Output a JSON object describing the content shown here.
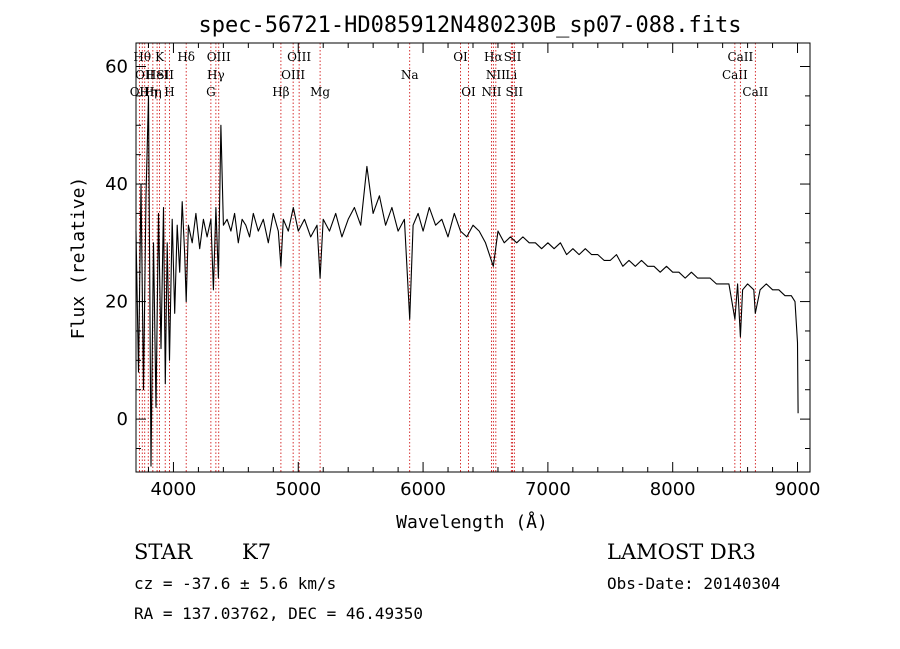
{
  "chart_data": {
    "type": "line",
    "title": "spec-56721-HD085912N480230B_sp07-088.fits",
    "xlabel": "Wavelength (Å)",
    "ylabel": "Flux (relative)",
    "xlim": [
      3700,
      9100
    ],
    "ylim": [
      -9,
      64
    ],
    "xticks": [
      4000,
      5000,
      6000,
      7000,
      8000,
      9000
    ],
    "yticks": [
      0,
      20,
      40,
      60
    ],
    "series": [
      {
        "name": "flux",
        "x": [
          3700,
          3720,
          3740,
          3760,
          3780,
          3800,
          3820,
          3840,
          3860,
          3880,
          3900,
          3920,
          3935,
          3950,
          3968,
          3990,
          4010,
          4030,
          4050,
          4070,
          4090,
          4102,
          4120,
          4150,
          4180,
          4210,
          4240,
          4270,
          4300,
          4320,
          4340,
          4360,
          4380,
          4400,
          4430,
          4460,
          4490,
          4520,
          4550,
          4580,
          4610,
          4640,
          4680,
          4720,
          4760,
          4800,
          4840,
          4861,
          4880,
          4920,
          4960,
          5000,
          5050,
          5100,
          5150,
          5175,
          5200,
          5250,
          5300,
          5350,
          5400,
          5450,
          5500,
          5550,
          5600,
          5650,
          5700,
          5750,
          5800,
          5850,
          5893,
          5920,
          5960,
          6000,
          6050,
          6100,
          6150,
          6200,
          6250,
          6300,
          6350,
          6400,
          6450,
          6500,
          6563,
          6600,
          6650,
          6700,
          6750,
          6800,
          6850,
          6900,
          6950,
          7000,
          7050,
          7100,
          7150,
          7200,
          7250,
          7300,
          7350,
          7400,
          7450,
          7500,
          7550,
          7600,
          7650,
          7700,
          7750,
          7800,
          7850,
          7900,
          7950,
          8000,
          8050,
          8100,
          8150,
          8200,
          8250,
          8300,
          8350,
          8400,
          8450,
          8498,
          8520,
          8542,
          8560,
          8600,
          8650,
          8662,
          8700,
          8750,
          8800,
          8850,
          8900,
          8950,
          8980,
          9000,
          9005
        ],
        "y": [
          32,
          8,
          40,
          5,
          38,
          55,
          -8,
          30,
          2,
          35,
          12,
          36,
          6,
          30,
          10,
          34,
          18,
          33,
          25,
          37,
          28,
          20,
          33,
          30,
          35,
          29,
          34,
          31,
          34,
          22,
          36,
          24,
          50,
          33,
          34,
          32,
          35,
          30,
          34,
          33,
          31,
          35,
          32,
          34,
          30,
          35,
          32,
          26,
          34,
          32,
          36,
          32,
          34,
          31,
          33,
          24,
          34,
          32,
          35,
          31,
          34,
          36,
          33,
          43,
          35,
          38,
          33,
          36,
          32,
          34,
          17,
          33,
          35,
          32,
          36,
          33,
          34,
          31,
          35,
          32,
          31,
          33,
          32,
          30,
          26,
          32,
          30,
          31,
          30,
          31,
          30,
          30,
          29,
          30,
          29,
          30,
          28,
          29,
          28,
          29,
          28,
          28,
          27,
          27,
          28,
          26,
          27,
          26,
          27,
          26,
          26,
          25,
          26,
          25,
          25,
          24,
          25,
          24,
          24,
          24,
          23,
          23,
          23,
          17,
          23,
          14,
          22,
          23,
          22,
          18,
          22,
          23,
          22,
          22,
          21,
          21,
          20,
          13,
          1
        ]
      }
    ],
    "lines": [
      {
        "x": 3727,
        "label": "OII",
        "row": 2
      },
      {
        "x": 3750,
        "label": "Hθ",
        "row": 0
      },
      {
        "x": 3770,
        "label": "OII",
        "row": 1
      },
      {
        "x": 3798,
        "label": "Hη",
        "row": 2
      },
      {
        "x": 3835,
        "label": "Hη",
        "row": 2
      },
      {
        "x": 3869,
        "label": "HeI",
        "row": 1
      },
      {
        "x": 3889,
        "label": "K",
        "row": 0
      },
      {
        "x": 3934,
        "label": "SII",
        "row": 1
      },
      {
        "x": 3968,
        "label": "H",
        "row": 2
      },
      {
        "x": 4102,
        "label": "Hδ",
        "row": 0
      },
      {
        "x": 4300,
        "label": "G",
        "row": 2
      },
      {
        "x": 4340,
        "label": "Hγ",
        "row": 1
      },
      {
        "x": 4363,
        "label": "OIII",
        "row": 0
      },
      {
        "x": 4861,
        "label": "Hβ",
        "row": 2
      },
      {
        "x": 4959,
        "label": "OIII",
        "row": 1
      },
      {
        "x": 5007,
        "label": "OIII",
        "row": 0
      },
      {
        "x": 5175,
        "label": "Mg",
        "row": 2
      },
      {
        "x": 5893,
        "label": "Na",
        "row": 1
      },
      {
        "x": 6300,
        "label": "OI",
        "row": 0
      },
      {
        "x": 6364,
        "label": "OI",
        "row": 2
      },
      {
        "x": 6548,
        "label": "NII",
        "row": 2
      },
      {
        "x": 6563,
        "label": "Hα",
        "row": 0
      },
      {
        "x": 6583,
        "label": "NII",
        "row": 1
      },
      {
        "x": 6707,
        "label": "Li",
        "row": 1
      },
      {
        "x": 6717,
        "label": "SII",
        "row": 0
      },
      {
        "x": 6731,
        "label": "SII",
        "row": 2
      },
      {
        "x": 8498,
        "label": "CaII",
        "row": 1
      },
      {
        "x": 8542,
        "label": "CaII",
        "row": 0
      },
      {
        "x": 8662,
        "label": "CaII",
        "row": 2
      }
    ]
  },
  "info": {
    "class": "STAR",
    "subclass": "K7",
    "survey": "LAMOST DR3",
    "cz": "cz = -37.6 ± 5.6 km/s",
    "obs_date": "Obs-Date: 20140304",
    "coords": "RA = 137.03762, DEC =  46.49350"
  },
  "colors": {
    "axes": "#000000",
    "spectrum": "#000000",
    "line_markers": "#cc0000"
  }
}
